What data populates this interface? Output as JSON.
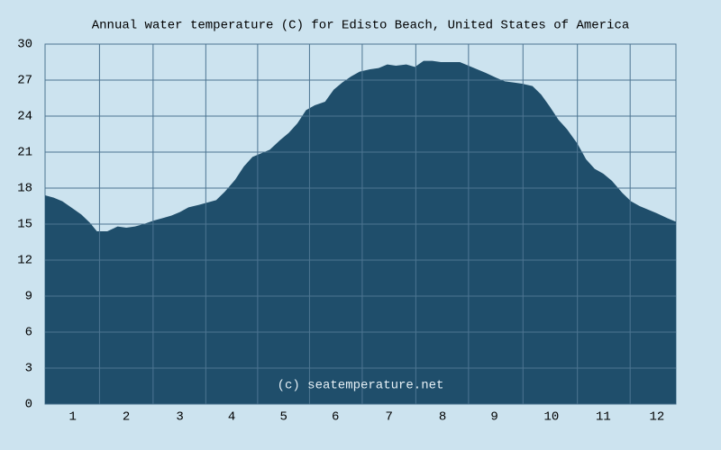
{
  "chart_data": {
    "type": "area",
    "title": "Annual water temperature (C) for Edisto Beach, United States of America",
    "annotation": "(c) seatemperature.net",
    "color": "#1f4e6b",
    "background": "#cce3ef",
    "grid": true,
    "x": [
      0,
      5,
      10,
      16,
      21,
      26,
      30,
      36,
      42,
      47,
      52,
      57,
      63,
      68,
      73,
      78,
      83,
      89,
      94,
      99,
      104,
      110,
      115,
      120,
      125,
      130,
      136,
      141,
      146,
      151,
      156,
      162,
      167,
      172,
      177,
      182,
      188,
      193,
      198,
      203,
      209,
      214,
      219,
      224,
      229,
      235,
      240,
      245,
      250,
      255,
      261,
      266,
      271,
      276,
      282,
      287,
      292,
      297,
      302,
      308,
      313,
      318,
      323,
      328,
      334,
      339,
      344,
      349,
      354,
      360,
      365
    ],
    "series": [
      {
        "name": "Water temperature",
        "color": "#1f4e6b",
        "values": [
          17.4,
          17.2,
          16.9,
          16.3,
          15.8,
          15.1,
          14.4,
          14.4,
          14.8,
          14.7,
          14.8,
          15.0,
          15.3,
          15.5,
          15.7,
          16.0,
          16.4,
          16.6,
          16.8,
          17.0,
          17.7,
          18.7,
          19.8,
          20.6,
          20.9,
          21.2,
          22.0,
          22.6,
          23.4,
          24.5,
          24.9,
          25.2,
          26.2,
          26.8,
          27.3,
          27.7,
          27.9,
          28.0,
          28.3,
          28.2,
          28.3,
          28.1,
          28.6,
          28.6,
          28.5,
          28.5,
          28.5,
          28.2,
          27.9,
          27.6,
          27.2,
          26.9,
          26.8,
          26.7,
          26.5,
          25.8,
          24.8,
          23.7,
          22.9,
          21.7,
          20.4,
          19.6,
          19.2,
          18.6,
          17.6,
          16.9,
          16.5,
          16.2,
          15.9,
          15.5,
          15.2
        ]
      }
    ],
    "xlim": [
      0,
      365
    ],
    "xticks": [
      {
        "value": 16,
        "label": "1"
      },
      {
        "value": 47,
        "label": "2"
      },
      {
        "value": 78,
        "label": "3"
      },
      {
        "value": 108,
        "label": "4"
      },
      {
        "value": 138,
        "label": "5"
      },
      {
        "value": 168,
        "label": "6"
      },
      {
        "value": 199,
        "label": "7"
      },
      {
        "value": 230,
        "label": "8"
      },
      {
        "value": 260,
        "label": "9"
      },
      {
        "value": 293,
        "label": "10"
      },
      {
        "value": 323,
        "label": "11"
      },
      {
        "value": 354,
        "label": "12"
      }
    ],
    "ylim": [
      0,
      30
    ],
    "yticks": [
      0,
      3,
      6,
      9,
      12,
      15,
      18,
      21,
      24,
      27,
      30
    ]
  }
}
